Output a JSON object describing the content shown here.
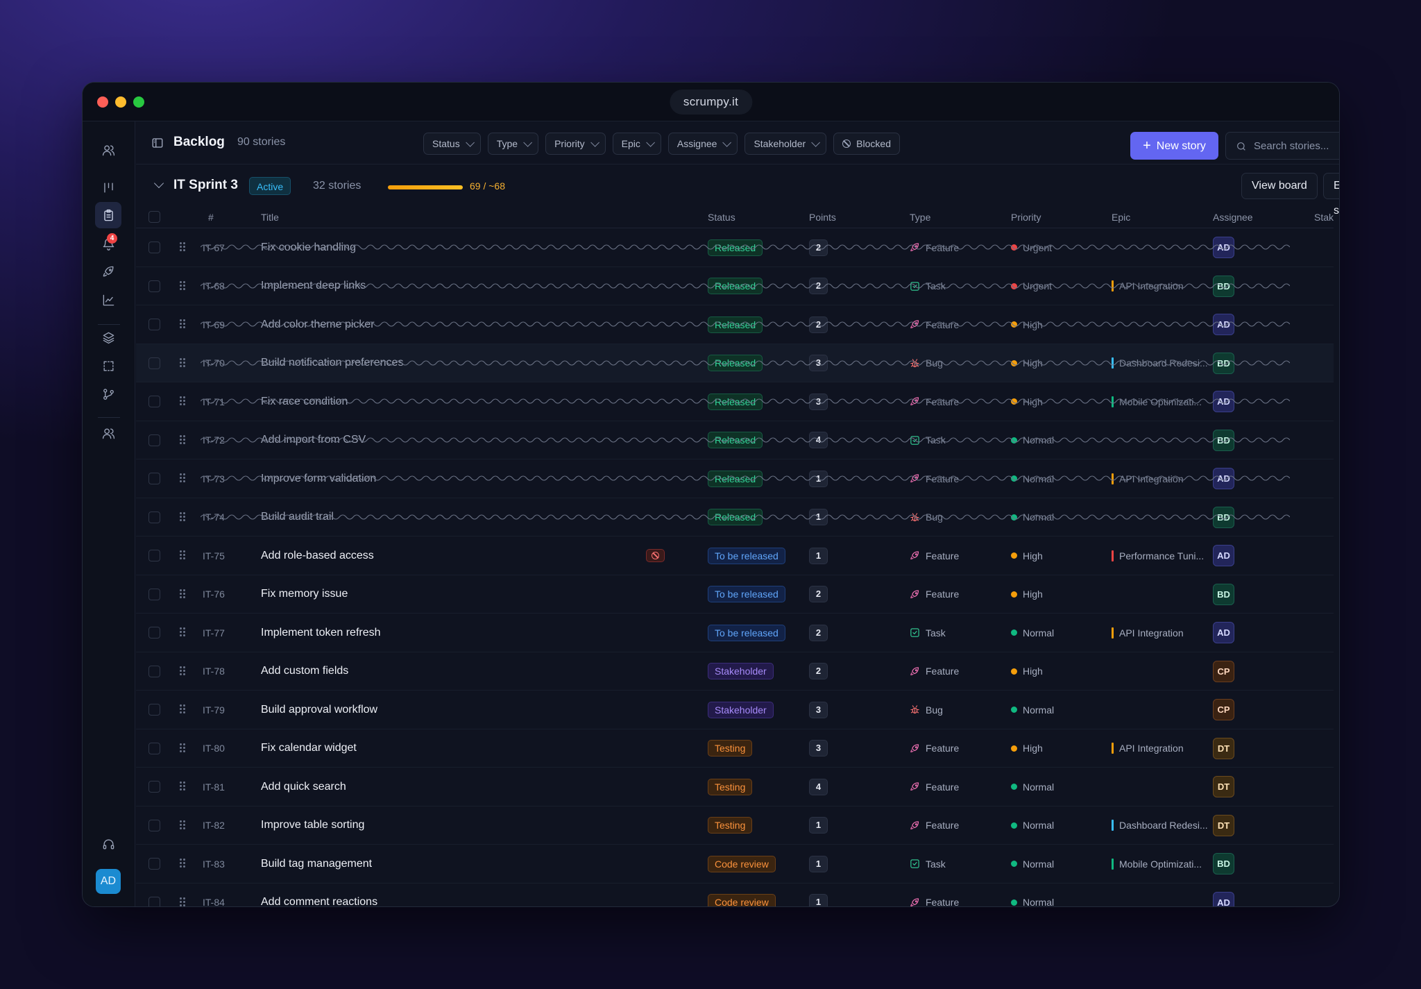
{
  "window": {
    "url": "scrumpy.it"
  },
  "rail": {
    "notification_count": "4",
    "user_initials": "AD"
  },
  "toolbar": {
    "title": "Backlog",
    "story_count": "90 stories",
    "filters": [
      "Status",
      "Type",
      "Priority",
      "Epic",
      "Assignee",
      "Stakeholder"
    ],
    "blocked_label": "Blocked",
    "new_story_label": "New story",
    "search_placeholder": "Search stories..."
  },
  "sprint": {
    "name": "IT Sprint 3",
    "status": "Active",
    "story_count": "32 stories",
    "progress_text": "69 / ~68",
    "progress_fraction": 1.0,
    "view_board_label": "View board",
    "end_sprint_label": "End sprint"
  },
  "columns": [
    "#",
    "Title",
    "Status",
    "Points",
    "Type",
    "Priority",
    "Epic",
    "Assignee",
    "Stakeholder"
  ],
  "colors": {
    "accent": "#6366f1",
    "priority": {
      "Urgent": "#ef4444",
      "High": "#f59e0b",
      "Normal": "#10b981"
    },
    "epic": {
      "API Integration": "#f59e0b",
      "Dashboard Redesi...": "#38bdf8",
      "Mobile Optimizati...": "#10b981",
      "Performance Tuni...": "#ef4444"
    }
  },
  "rows": [
    {
      "id": "IT-67",
      "title": "Fix cookie handling",
      "status": "Released",
      "status_kind": "released",
      "points": "2",
      "type": "Feature",
      "priority": "Urgent",
      "epic": "",
      "assignee": "AD",
      "done": true
    },
    {
      "id": "IT-68",
      "title": "Implement deep links",
      "status": "Released",
      "status_kind": "released",
      "points": "2",
      "type": "Task",
      "priority": "Urgent",
      "epic": "API Integration",
      "assignee": "BD",
      "done": true
    },
    {
      "id": "IT-69",
      "title": "Add color theme picker",
      "status": "Released",
      "status_kind": "released",
      "points": "2",
      "type": "Feature",
      "priority": "High",
      "epic": "",
      "assignee": "AD",
      "done": true
    },
    {
      "id": "IT-70",
      "title": "Build notification preferences",
      "status": "Released",
      "status_kind": "released",
      "points": "3",
      "type": "Bug",
      "priority": "High",
      "epic": "Dashboard Redesi...",
      "assignee": "BD",
      "done": true,
      "hover": true
    },
    {
      "id": "IT-71",
      "title": "Fix race condition",
      "status": "Released",
      "status_kind": "released",
      "points": "3",
      "type": "Feature",
      "priority": "High",
      "epic": "Mobile Optimizati...",
      "assignee": "AD",
      "done": true
    },
    {
      "id": "IT-72",
      "title": "Add import from CSV",
      "status": "Released",
      "status_kind": "released",
      "points": "4",
      "type": "Task",
      "priority": "Normal",
      "epic": "",
      "assignee": "BD",
      "done": true
    },
    {
      "id": "IT-73",
      "title": "Improve form validation",
      "status": "Released",
      "status_kind": "released",
      "points": "1",
      "type": "Feature",
      "priority": "Normal",
      "epic": "API Integration",
      "assignee": "AD",
      "done": true
    },
    {
      "id": "IT-74",
      "title": "Build audit trail",
      "status": "Released",
      "status_kind": "released",
      "points": "1",
      "type": "Bug",
      "priority": "Normal",
      "epic": "",
      "assignee": "BD",
      "done": true
    },
    {
      "id": "IT-75",
      "title": "Add role-based access",
      "status": "To be released",
      "status_kind": "tobe",
      "points": "1",
      "type": "Feature",
      "priority": "High",
      "epic": "Performance Tuni...",
      "assignee": "AD",
      "blocked": true
    },
    {
      "id": "IT-76",
      "title": "Fix memory issue",
      "status": "To be released",
      "status_kind": "tobe",
      "points": "2",
      "type": "Feature",
      "priority": "High",
      "epic": "",
      "assignee": "BD"
    },
    {
      "id": "IT-77",
      "title": "Implement token refresh",
      "status": "To be released",
      "status_kind": "tobe",
      "points": "2",
      "type": "Task",
      "priority": "Normal",
      "epic": "API Integration",
      "assignee": "AD"
    },
    {
      "id": "IT-78",
      "title": "Add custom fields",
      "status": "Stakeholder",
      "status_kind": "stake",
      "points": "2",
      "type": "Feature",
      "priority": "High",
      "epic": "",
      "assignee": "CP"
    },
    {
      "id": "IT-79",
      "title": "Build approval workflow",
      "status": "Stakeholder",
      "status_kind": "stake",
      "points": "3",
      "type": "Bug",
      "priority": "Normal",
      "epic": "",
      "assignee": "CP"
    },
    {
      "id": "IT-80",
      "title": "Fix calendar widget",
      "status": "Testing",
      "status_kind": "testing",
      "points": "3",
      "type": "Feature",
      "priority": "High",
      "epic": "API Integration",
      "assignee": "DT"
    },
    {
      "id": "IT-81",
      "title": "Add quick search",
      "status": "Testing",
      "status_kind": "testing",
      "points": "4",
      "type": "Feature",
      "priority": "Normal",
      "epic": "",
      "assignee": "DT"
    },
    {
      "id": "IT-82",
      "title": "Improve table sorting",
      "status": "Testing",
      "status_kind": "testing",
      "points": "1",
      "type": "Feature",
      "priority": "Normal",
      "epic": "Dashboard Redesi...",
      "assignee": "DT"
    },
    {
      "id": "IT-83",
      "title": "Build tag management",
      "status": "Code review",
      "status_kind": "review",
      "points": "1",
      "type": "Task",
      "priority": "Normal",
      "epic": "Mobile Optimizati...",
      "assignee": "BD"
    },
    {
      "id": "IT-84",
      "title": "Add comment reactions",
      "status": "Code review",
      "status_kind": "review",
      "points": "1",
      "type": "Feature",
      "priority": "Normal",
      "epic": "",
      "assignee": "AD"
    }
  ]
}
